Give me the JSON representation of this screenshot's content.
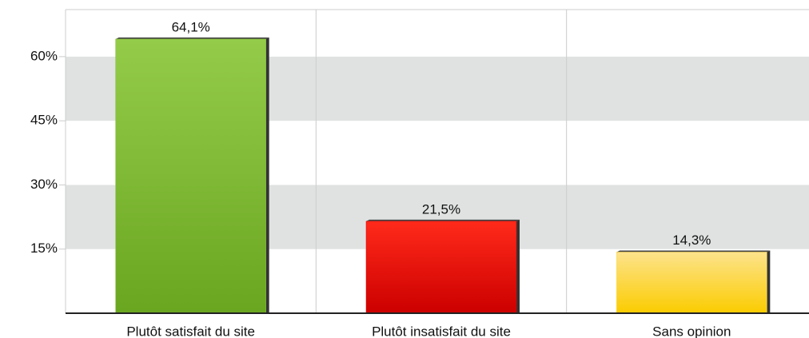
{
  "chart_data": {
    "type": "bar",
    "categories": [
      "Plutôt satisfait du site",
      "Plutôt insatisfait du site",
      "Sans opinion"
    ],
    "values": [
      64.1,
      21.5,
      14.3
    ],
    "value_labels": [
      "64,1%",
      "21,5%",
      "14,3%"
    ],
    "colors": [
      "#7cbb2c",
      "#e80000",
      "#fbd84a"
    ],
    "ylim": [
      0,
      71
    ],
    "yticks": [
      {
        "value": 15,
        "label": "15%"
      },
      {
        "value": 30,
        "label": "30%"
      },
      {
        "value": 45,
        "label": "45%"
      },
      {
        "value": 60,
        "label": "60%"
      }
    ],
    "grid": true,
    "band_color": "#e0e2e2"
  }
}
